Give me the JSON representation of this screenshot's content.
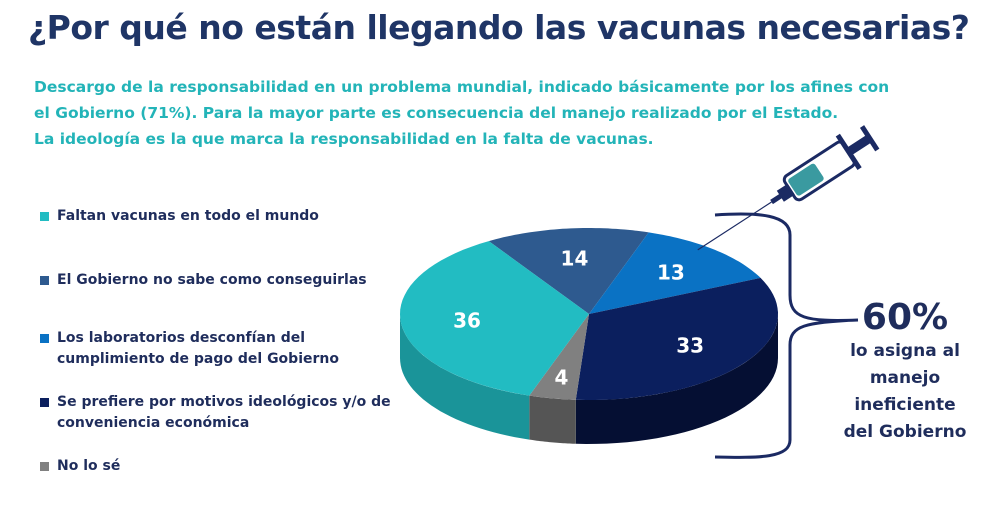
{
  "title": "¿Por qué no están llegando las vacunas necesarias?",
  "subtitle": [
    "Descargo de la responsabilidad en un problema mundial, indicado básicamente por los afines con",
    "el Gobierno (71%). Para la mayor parte es consecuencia del manejo realizado por el Estado.",
    "La ideología es la que marca la responsabilidad en la falta de vacunas."
  ],
  "chart_data": {
    "type": "pie",
    "style": "3d",
    "categories": [
      "Faltan vacunas en todo el mundo",
      "El Gobierno no sabe como conseguirlas",
      "Los laboratorios desconfían del cumplimiento de pago del Gobierno",
      "Se prefiere por motivos ideológicos y/o de conveniencia económica",
      "No lo sé"
    ],
    "legend_lines": [
      [
        "Faltan vacunas en todo el mundo"
      ],
      [
        "El Gobierno no sabe como conseguirlas"
      ],
      [
        "Los laboratorios desconfían del",
        "cumplimiento de pago del Gobierno"
      ],
      [
        "Se prefiere por motivos ideológicos y/o de",
        "conveniencia económica"
      ],
      [
        "No lo sé"
      ]
    ],
    "values": [
      36,
      14,
      13,
      33,
      4
    ],
    "labels": [
      "36",
      "14",
      "13",
      "33",
      "4"
    ],
    "colors": [
      "#22bcc2",
      "#2e5a8f",
      "#0a72c4",
      "#0b1f5e",
      "#808080"
    ],
    "side_colors": [
      "#1a9499",
      "#234570",
      "#08579a",
      "#050f33",
      "#555555"
    ],
    "legend_position": "left"
  },
  "annotation": {
    "big": "60%",
    "lines": [
      "lo asigna al",
      "manejo",
      "ineficiente",
      "del Gobierno"
    ]
  }
}
